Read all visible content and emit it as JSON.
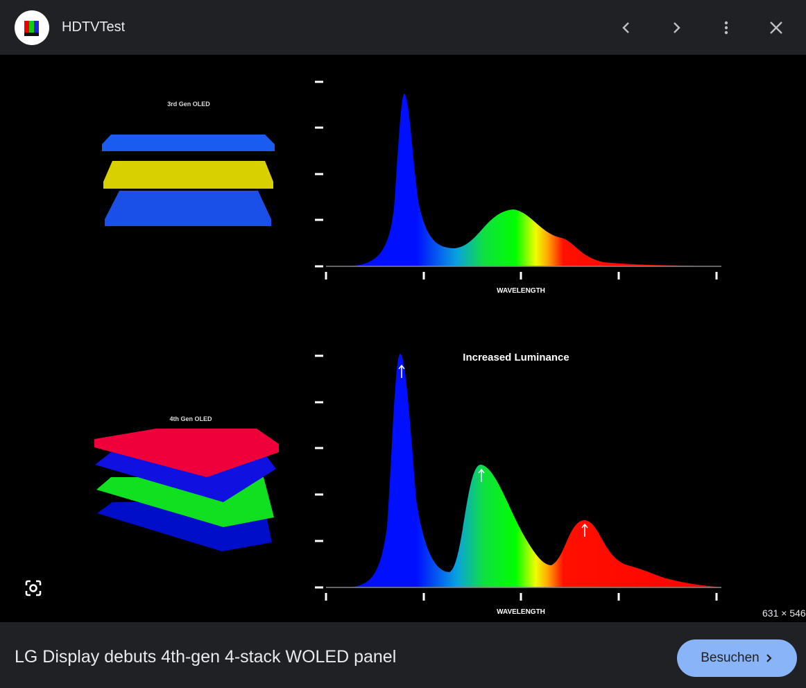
{
  "header": {
    "site_name": "HDTVTest",
    "logo_text": "HDTVTest"
  },
  "image": {
    "top_panel": {
      "label": "3rd Gen OLED",
      "xlabel": "WAVELENGTH"
    },
    "bottom_panel": {
      "label": "4th Gen OLED",
      "xlabel": "WAVELENGTH",
      "annotation": "Increased Luminance"
    },
    "dimensions": "631 × 546"
  },
  "footer": {
    "title": "LG Display debuts 4th-gen 4-stack WOLED panel",
    "visit_label": "Besuchen"
  },
  "colors": {
    "header_bg": "#202124",
    "button": "#8ab4f8"
  }
}
